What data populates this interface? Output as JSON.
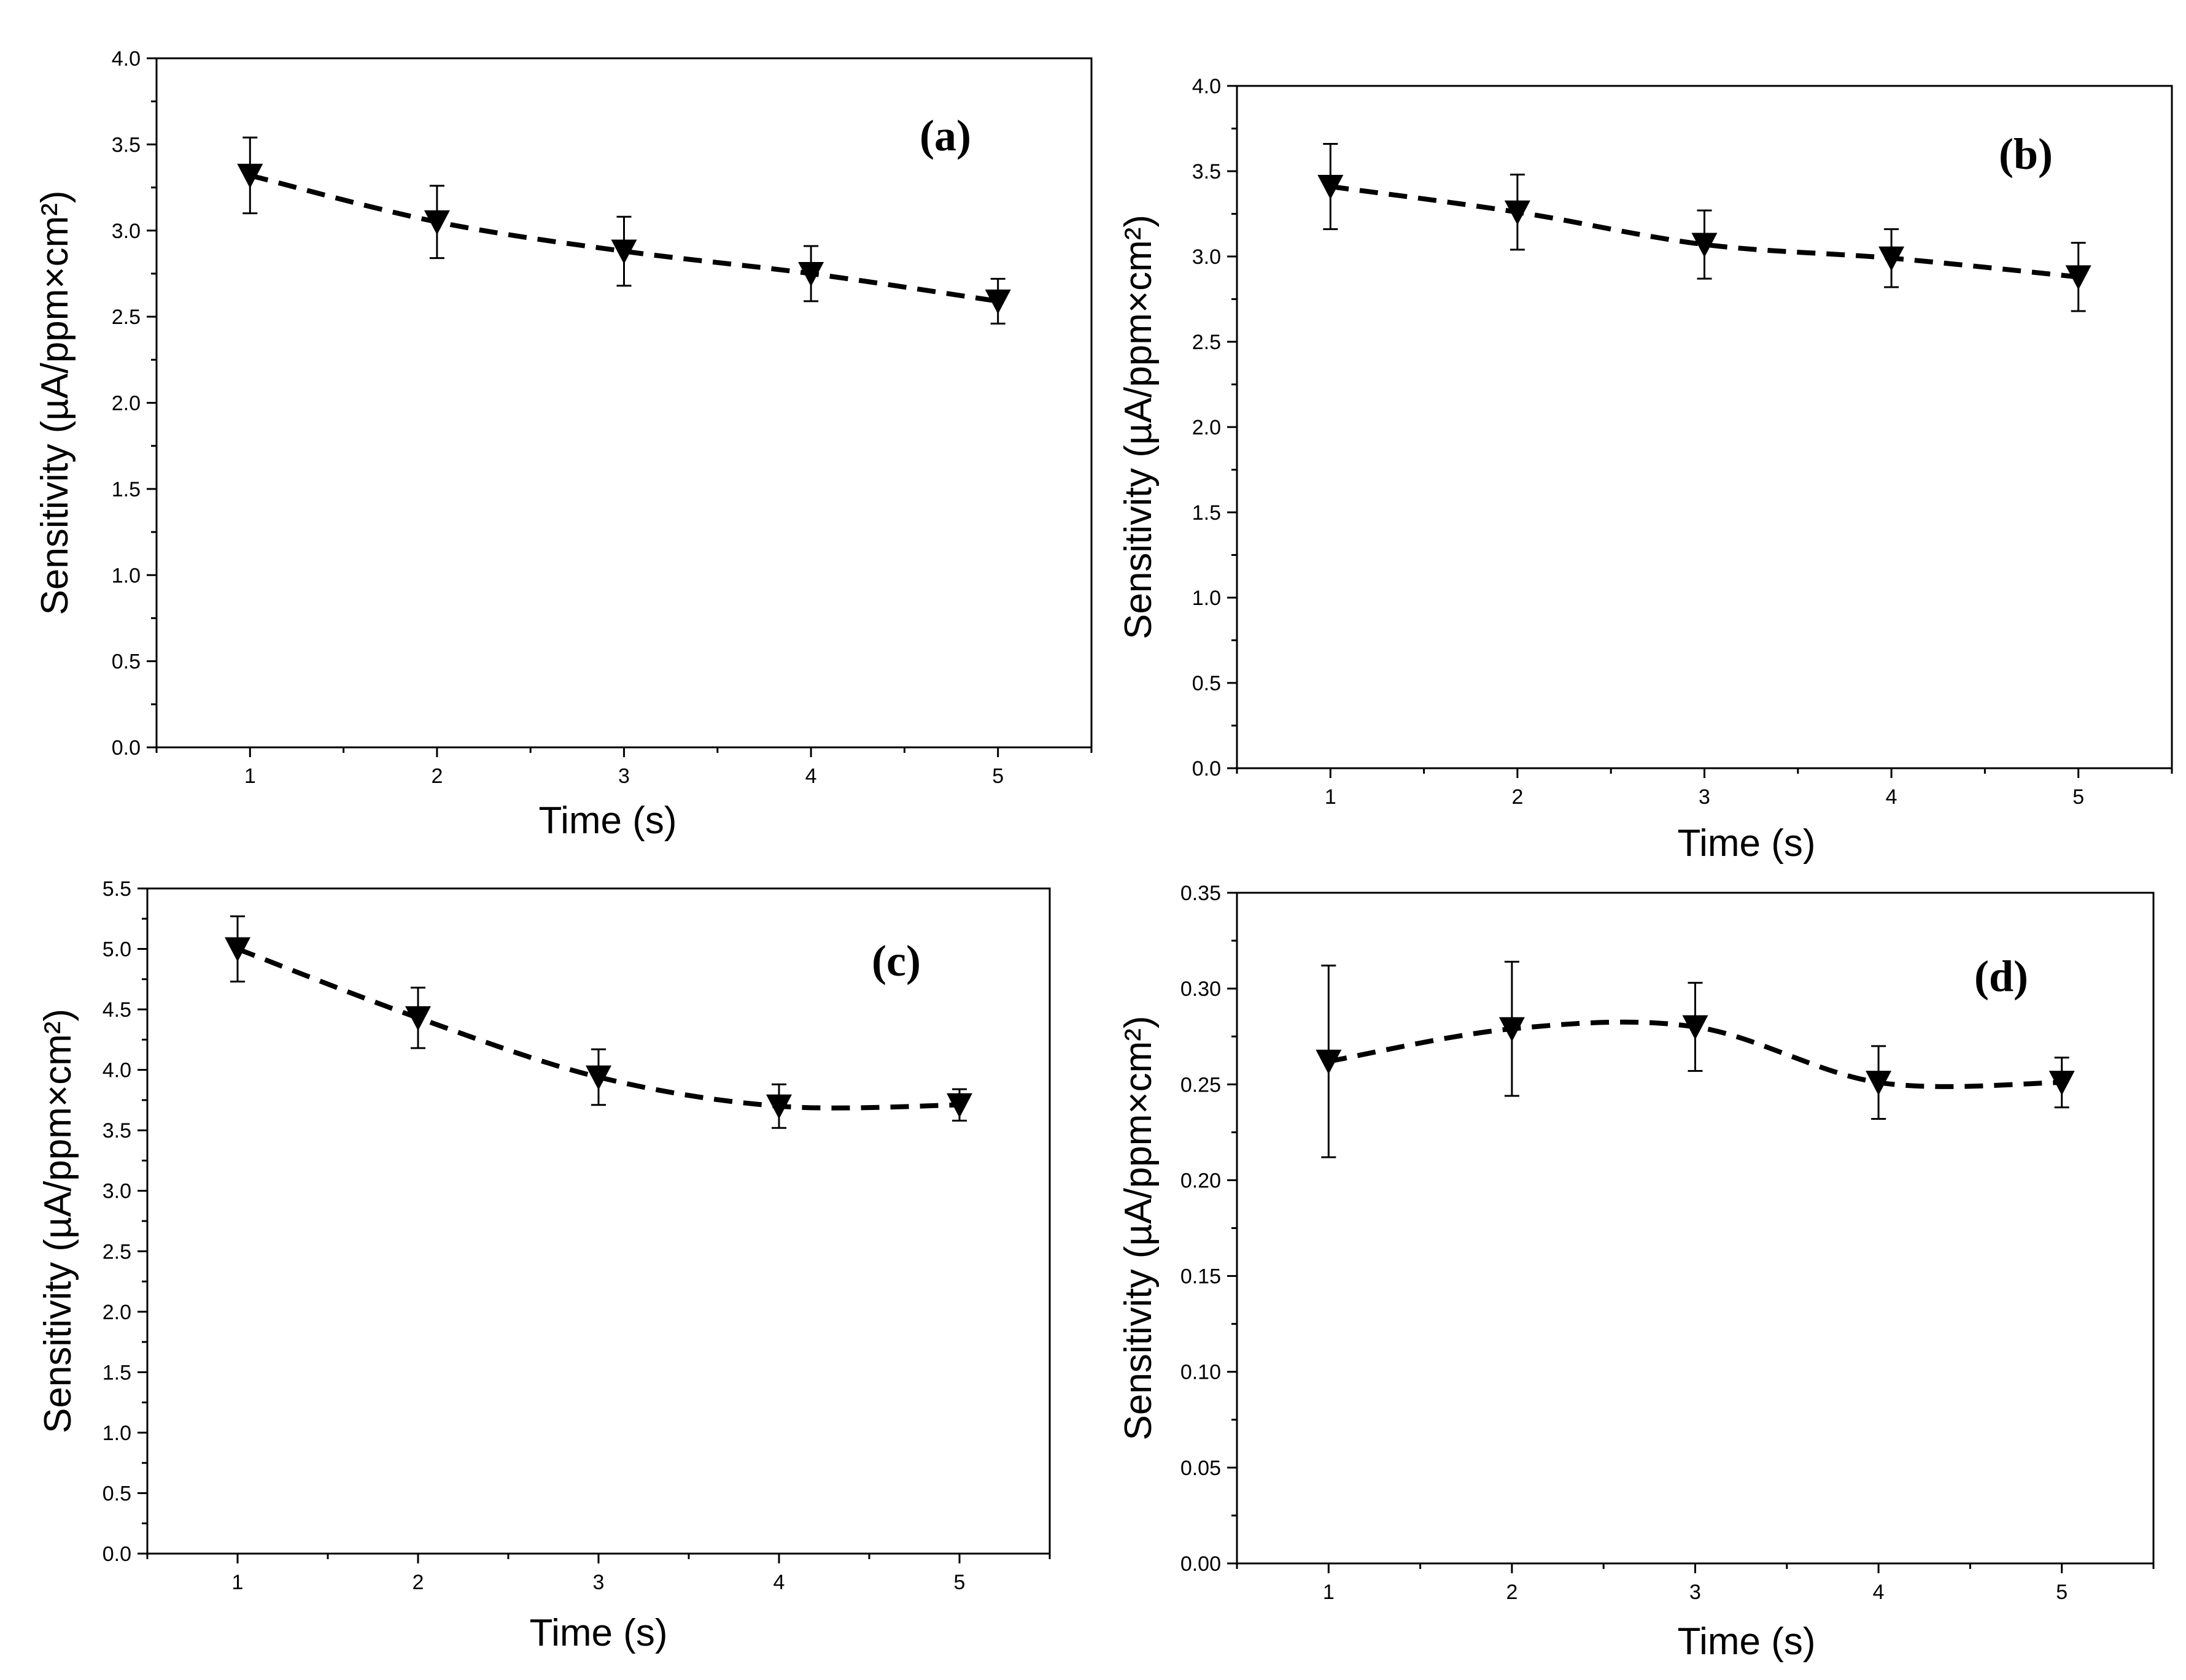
{
  "chart_data": [
    {
      "type": "line",
      "panel_label": "(a)",
      "xlabel": "Time (s)",
      "ylabel": "Sensitivity (µA/ppm×cm²)",
      "x": [
        1,
        2,
        3,
        4,
        5
      ],
      "x_ticks": [
        "1",
        "2",
        "3",
        "4",
        "5"
      ],
      "xlim": [
        0.5,
        5.5
      ],
      "ylim": [
        0,
        4.0
      ],
      "y_ticks": [
        "0.0",
        "0.5",
        "1.0",
        "1.5",
        "2.0",
        "2.5",
        "3.0",
        "3.5",
        "4.0"
      ],
      "series": [
        {
          "name": "Sensitivity",
          "marker": "down-triangle",
          "line": "dashed",
          "color": "#000000",
          "values": [
            3.32,
            3.05,
            2.88,
            2.75,
            2.59
          ],
          "errors": [
            0.22,
            0.21,
            0.2,
            0.16,
            0.13
          ]
        }
      ],
      "legend_placement": "top-right",
      "grid": false
    },
    {
      "type": "line",
      "panel_label": "(b)",
      "xlabel": "Time (s)",
      "ylabel": "Sensitivity (µA/ppm×cm²)",
      "x": [
        1,
        2,
        3,
        4,
        5
      ],
      "x_ticks": [
        "1",
        "2",
        "3",
        "4",
        "5"
      ],
      "xlim": [
        0.5,
        5.5
      ],
      "ylim": [
        0,
        4.0
      ],
      "y_ticks": [
        "0.0",
        "0.5",
        "1.0",
        "1.5",
        "2.0",
        "2.5",
        "3.0",
        "3.5",
        "4.0"
      ],
      "series": [
        {
          "name": "Sensitivity",
          "marker": "down-triangle",
          "line": "dashed",
          "color": "#000000",
          "values": [
            3.41,
            3.26,
            3.07,
            2.99,
            2.88
          ],
          "errors": [
            0.25,
            0.22,
            0.2,
            0.17,
            0.2
          ]
        }
      ],
      "legend_placement": "top-right",
      "grid": false
    },
    {
      "type": "line",
      "panel_label": "(c)",
      "xlabel": "Time (s)",
      "ylabel": "Sensitivity (µA/ppm×cm²)",
      "x": [
        1,
        2,
        3,
        4,
        5
      ],
      "x_ticks": [
        "1",
        "2",
        "3",
        "4",
        "5"
      ],
      "xlim": [
        0.5,
        5.5
      ],
      "ylim": [
        0,
        5.5
      ],
      "y_ticks": [
        "0.0",
        "0.5",
        "1.0",
        "1.5",
        "2.0",
        "2.5",
        "3.0",
        "3.5",
        "4.0",
        "4.5",
        "5.0",
        "5.5"
      ],
      "series": [
        {
          "name": "Sensitivity",
          "marker": "down-triangle",
          "line": "dashed",
          "color": "#000000",
          "values": [
            5.0,
            4.43,
            3.94,
            3.7,
            3.71
          ],
          "errors": [
            0.27,
            0.25,
            0.23,
            0.18,
            0.13
          ]
        }
      ],
      "legend_placement": "top-right",
      "grid": false
    },
    {
      "type": "line",
      "panel_label": "(d)",
      "xlabel": "Time (s)",
      "ylabel": "Sensitivity (µA/ppm×cm²)",
      "x": [
        1,
        2,
        3,
        4,
        5
      ],
      "x_ticks": [
        "1",
        "2",
        "3",
        "4",
        "5"
      ],
      "xlim": [
        0.5,
        5.5
      ],
      "ylim": [
        0,
        0.35
      ],
      "y_ticks": [
        "0.00",
        "0.05",
        "0.10",
        "0.15",
        "0.20",
        "0.25",
        "0.30",
        "0.35"
      ],
      "series": [
        {
          "name": "Sensitivity",
          "marker": "down-triangle",
          "line": "dashed",
          "color": "#000000",
          "values": [
            0.262,
            0.279,
            0.28,
            0.251,
            0.251
          ],
          "errors": [
            0.05,
            0.035,
            0.023,
            0.019,
            0.013
          ]
        }
      ],
      "legend_placement": "top-right",
      "grid": false
    }
  ]
}
